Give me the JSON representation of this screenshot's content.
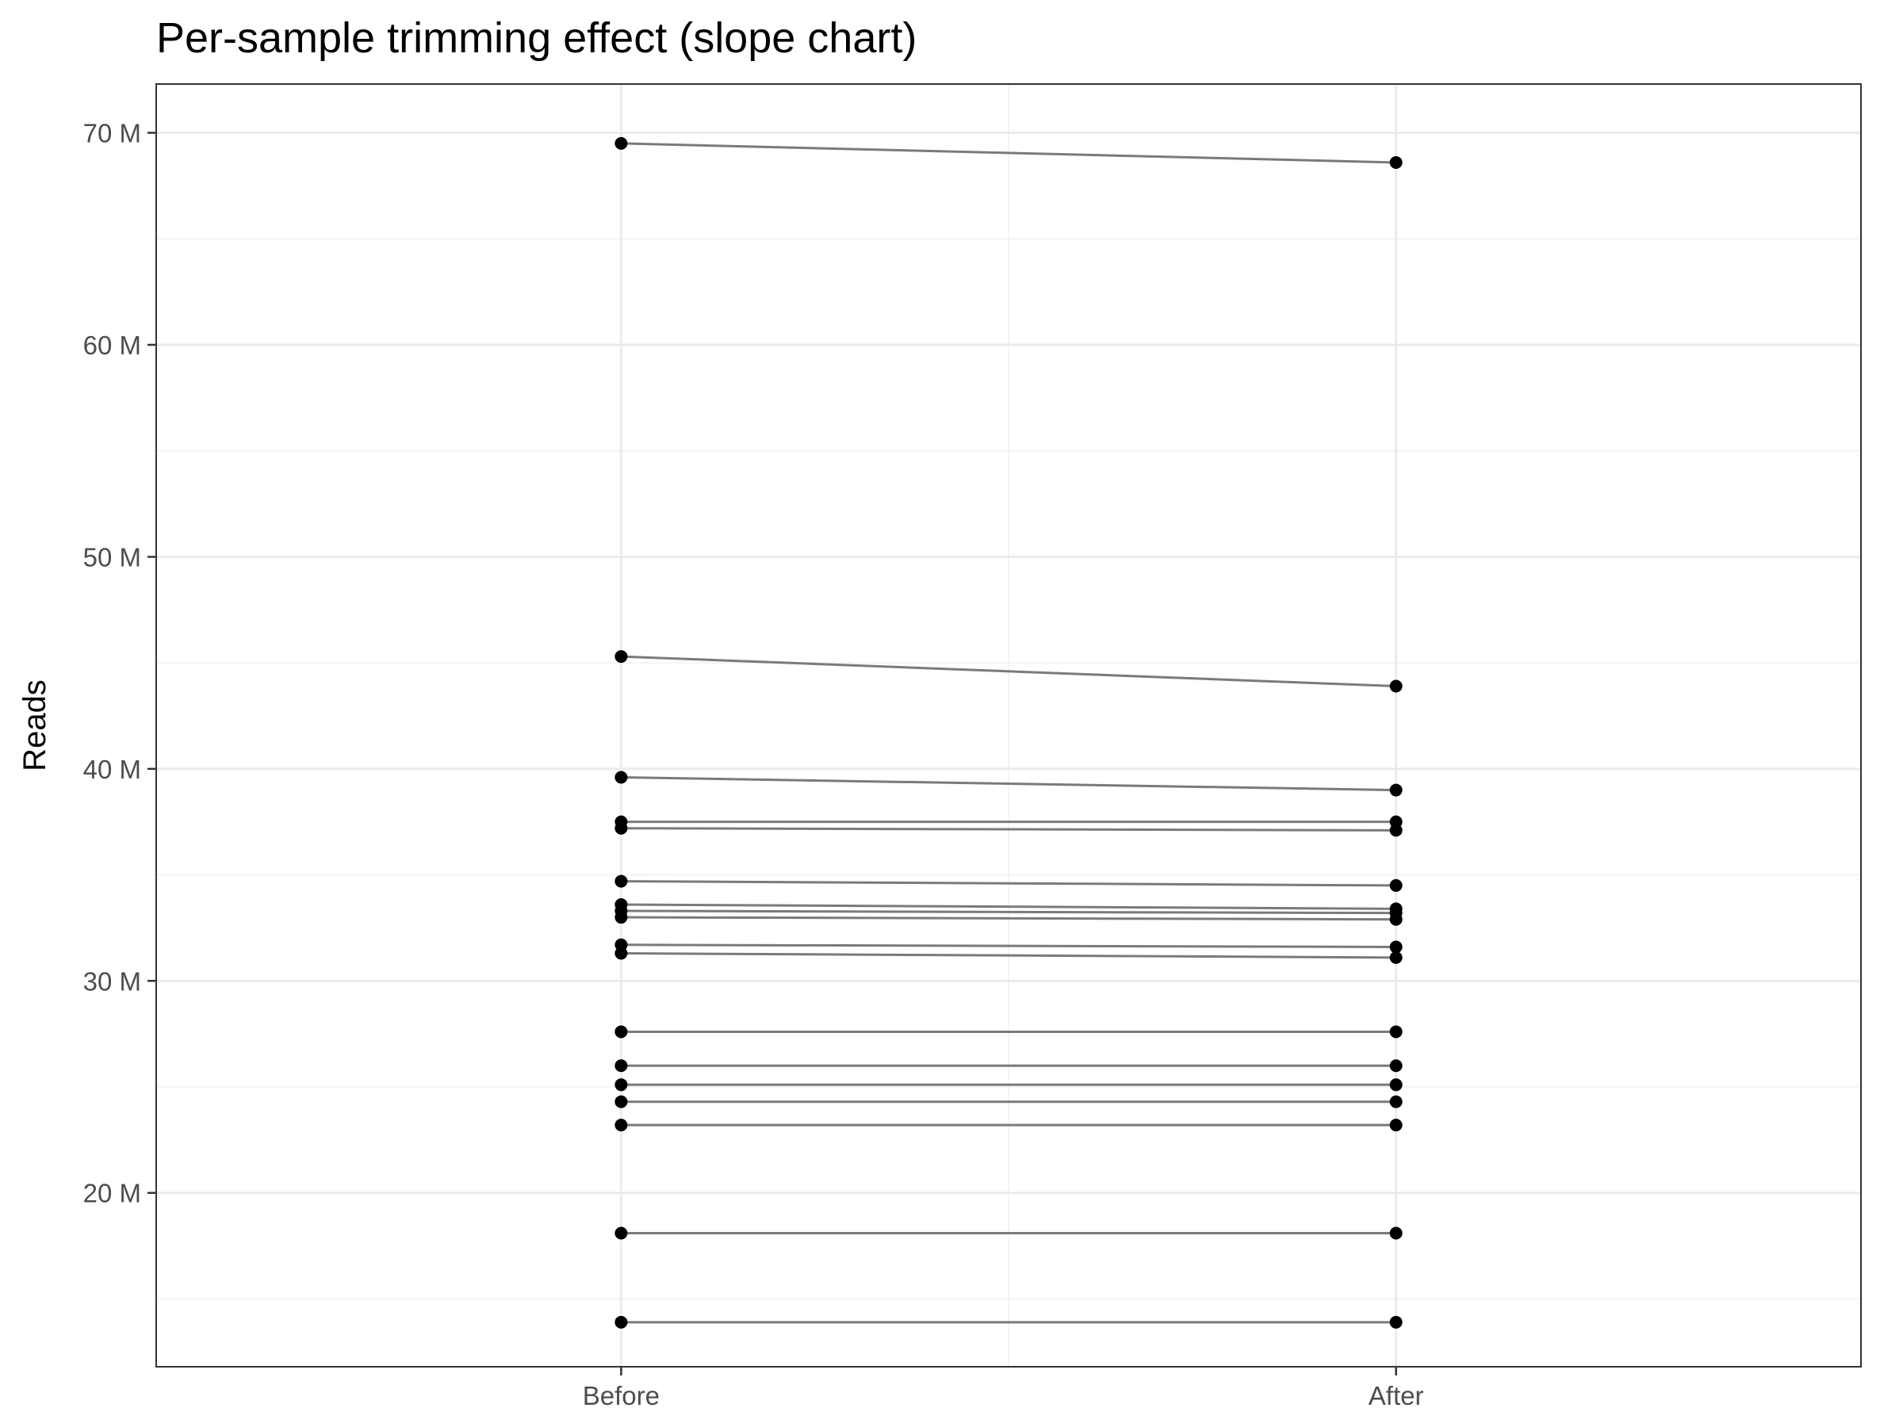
{
  "chart_data": {
    "type": "line",
    "title": "Per-sample trimming effect (slope chart)",
    "xlabel": "",
    "ylabel": "Reads",
    "categories": [
      "Before",
      "After"
    ],
    "ylim": [
      11.8,
      72.3
    ],
    "y_ticks": [
      20,
      30,
      40,
      50,
      60,
      70
    ],
    "y_tick_labels": [
      "20 M",
      "30 M",
      "40 M",
      "50 M",
      "60 M",
      "70 M"
    ],
    "y_unit": "M",
    "grid": true,
    "legend": "none",
    "line_color": "#7a7a7a",
    "point_color": "#000000",
    "series": [
      {
        "values": [
          69.5,
          68.6
        ]
      },
      {
        "values": [
          45.3,
          43.9
        ]
      },
      {
        "values": [
          39.6,
          39.0
        ]
      },
      {
        "values": [
          37.5,
          37.5
        ]
      },
      {
        "values": [
          37.2,
          37.1
        ]
      },
      {
        "values": [
          34.7,
          34.5
        ]
      },
      {
        "values": [
          33.6,
          33.4
        ]
      },
      {
        "values": [
          33.3,
          33.2
        ]
      },
      {
        "values": [
          33.0,
          32.9
        ]
      },
      {
        "values": [
          31.7,
          31.6
        ]
      },
      {
        "values": [
          31.3,
          31.1
        ]
      },
      {
        "values": [
          27.6,
          27.6
        ]
      },
      {
        "values": [
          26.0,
          26.0
        ]
      },
      {
        "values": [
          25.1,
          25.1
        ]
      },
      {
        "values": [
          24.3,
          24.3
        ]
      },
      {
        "values": [
          23.2,
          23.2
        ]
      },
      {
        "values": [
          18.1,
          18.1
        ]
      },
      {
        "values": [
          13.9,
          13.9
        ]
      }
    ]
  }
}
